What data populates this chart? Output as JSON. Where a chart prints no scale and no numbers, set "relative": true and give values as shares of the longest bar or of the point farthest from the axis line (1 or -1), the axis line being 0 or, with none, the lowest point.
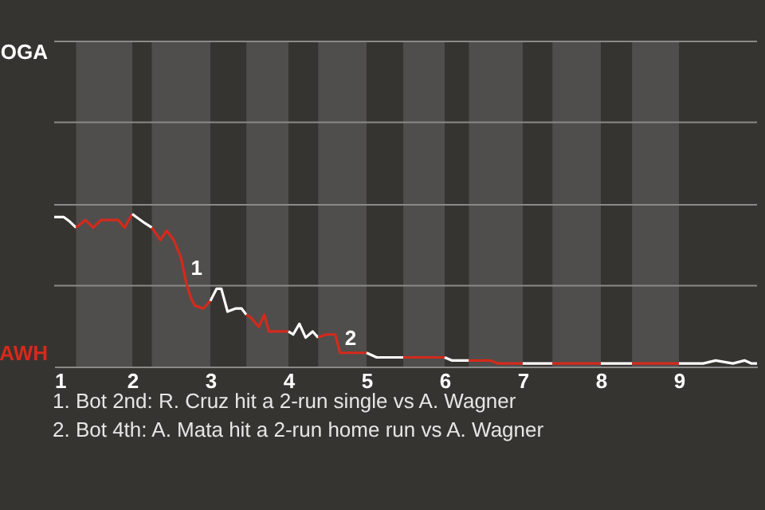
{
  "chart_data": {
    "type": "line",
    "relative": true,
    "xlim": [
      1,
      10
    ],
    "xticks": [
      1,
      2,
      3,
      4,
      5,
      6,
      7,
      8,
      9
    ],
    "ref_lines": [
      {
        "axis": "y",
        "value": 0.53,
        "label": null,
        "color": "#8a8a88"
      },
      {
        "axis": "y",
        "value": 1.06,
        "label": null,
        "color": "#8a8a88"
      },
      {
        "axis": "y",
        "value": 1.6,
        "label": null,
        "color": "#8a8a88"
      },
      {
        "axis": "y",
        "value": 2.13,
        "label": "OGA",
        "color": "#8a8a88"
      }
    ],
    "bands": [
      {
        "axis": "x",
        "from": 1.28,
        "to": 2,
        "color": "#4f4e4c"
      },
      {
        "axis": "x",
        "from": 2.25,
        "to": 3,
        "color": "#4f4e4c"
      },
      {
        "axis": "x",
        "from": 3.46,
        "to": 4,
        "color": "#4f4e4c"
      },
      {
        "axis": "x",
        "from": 4.38,
        "to": 5,
        "color": "#4f4e4c"
      },
      {
        "axis": "x",
        "from": 5.47,
        "to": 6,
        "color": "#4f4e4c"
      },
      {
        "axis": "x",
        "from": 6.31,
        "to": 7,
        "color": "#4f4e4c"
      },
      {
        "axis": "x",
        "from": 7.38,
        "to": 8,
        "color": "#4f4e4c"
      },
      {
        "axis": "x",
        "from": 8.4,
        "to": 9,
        "color": "#4f4e4c"
      }
    ],
    "series": [
      {
        "color": "#ffffff",
        "x": [
          1,
          1.12,
          1.2,
          1.28
        ],
        "values": [
          0.98,
          0.98,
          0.95,
          0.91
        ]
      },
      {
        "color": "#d42a1c",
        "x": [
          1.28,
          1.4,
          1.5,
          1.6,
          1.82,
          1.9,
          2
        ],
        "values": [
          0.91,
          0.96,
          0.91,
          0.96,
          0.96,
          0.91,
          1
        ]
      },
      {
        "color": "#ffffff",
        "x": [
          2,
          2.05,
          2.16,
          2.25
        ],
        "values": [
          1,
          0.98,
          0.94,
          0.91
        ]
      },
      {
        "color": "#d42a1c",
        "x": [
          2.25,
          2.36,
          2.44,
          2.53,
          2.62,
          2.69,
          2.75,
          2.8,
          2.91,
          3
        ],
        "values": [
          0.91,
          0.83,
          0.89,
          0.83,
          0.72,
          0.55,
          0.45,
          0.4,
          0.38,
          0.43
        ]
      },
      {
        "color": "#ffffff",
        "x": [
          3,
          3.08,
          3.14,
          3.22,
          3.32,
          3.4,
          3.46
        ],
        "values": [
          0.43,
          0.51,
          0.51,
          0.36,
          0.38,
          0.38,
          0.34
        ]
      },
      {
        "color": "#d42a1c",
        "x": [
          3.46,
          3.52,
          3.62,
          3.69,
          3.75,
          4
        ],
        "values": [
          0.34,
          0.32,
          0.26,
          0.34,
          0.23,
          0.23
        ]
      },
      {
        "color": "#ffffff",
        "x": [
          4,
          4.06,
          4.14,
          4.22,
          4.31,
          4.38
        ],
        "values": [
          0.23,
          0.21,
          0.28,
          0.19,
          0.23,
          0.19
        ]
      },
      {
        "color": "#d42a1c",
        "x": [
          4.38,
          4.48,
          4.6,
          4.66,
          4.75,
          5
        ],
        "values": [
          0.19,
          0.21,
          0.21,
          0.09,
          0.09,
          0.09
        ]
      },
      {
        "color": "#ffffff",
        "x": [
          5,
          5.13,
          5.3,
          5.47
        ],
        "values": [
          0.09,
          0.06,
          0.06,
          0.06
        ]
      },
      {
        "color": "#d42a1c",
        "x": [
          5.47,
          5.87,
          6
        ],
        "values": [
          0.06,
          0.06,
          0.06
        ]
      },
      {
        "color": "#ffffff",
        "x": [
          6,
          6.09,
          6.31
        ],
        "values": [
          0.06,
          0.04,
          0.04
        ]
      },
      {
        "color": "#d42a1c",
        "x": [
          6.31,
          6.58,
          6.69,
          7
        ],
        "values": [
          0.04,
          0.04,
          0.02,
          0.02
        ]
      },
      {
        "color": "#ffffff",
        "x": [
          7,
          7.12,
          7.26,
          7.38
        ],
        "values": [
          0.02,
          0.02,
          0.02,
          0.02
        ]
      },
      {
        "color": "#d42a1c",
        "x": [
          7.38,
          8
        ],
        "values": [
          0.02,
          0.02
        ]
      },
      {
        "color": "#ffffff",
        "x": [
          8,
          8.4
        ],
        "values": [
          0.02,
          0.02
        ]
      },
      {
        "color": "#d42a1c",
        "x": [
          8.4,
          9
        ],
        "values": [
          0.02,
          0.02
        ]
      },
      {
        "color": "#ffffff",
        "x": [
          9,
          9.31,
          9.47,
          9.69,
          9.84,
          9.93,
          10
        ],
        "values": [
          0.02,
          0.02,
          0.04,
          0.02,
          0.04,
          0.02,
          0.02
        ]
      }
    ],
    "annotations": [
      "AWH",
      {
        "text": "1",
        "x": 2.69,
        "y": 0.55
      },
      {
        "text": "2",
        "x": 4.66,
        "y": 0.09
      },
      "1. Bot 2nd: R. Cruz hit a 2-run single vs A. Wagner",
      "2. Bot 4th: A. Mata hit a 2-run home run vs A. Wagner"
    ]
  }
}
